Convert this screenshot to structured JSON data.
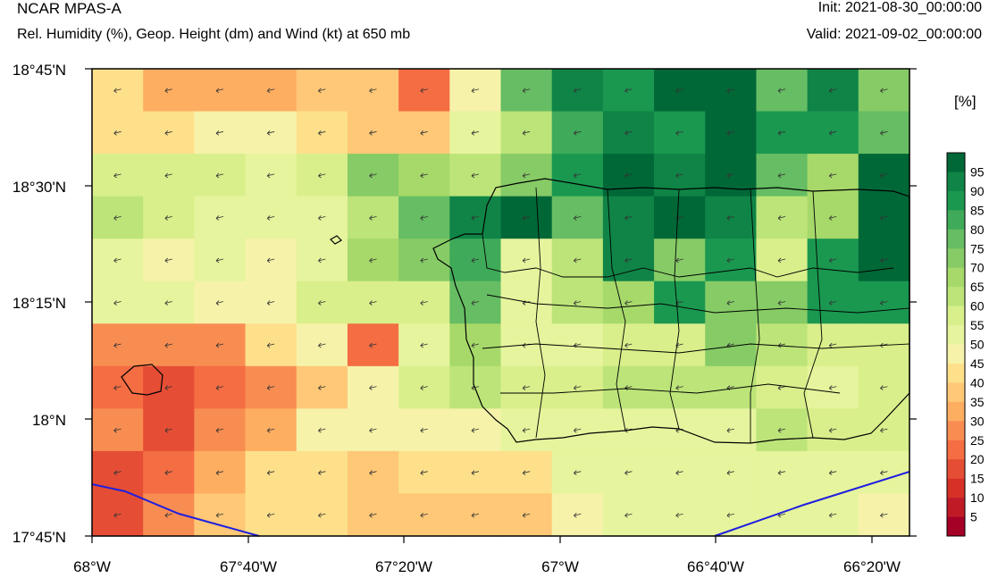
{
  "header": {
    "title": "NCAR MPAS-A",
    "subtitle": "Rel. Humidity (%), Geop. Height (dm) and Wind (kt) at 650 mb",
    "init": "Init: 2021-08-30_00:00:00",
    "valid": "Valid: 2021-09-02_00:00:00"
  },
  "colorbar": {
    "unit": "[%]",
    "labels": [
      "5",
      "10",
      "15",
      "20",
      "25",
      "30",
      "35",
      "40",
      "45",
      "50",
      "55",
      "60",
      "65",
      "70",
      "75",
      "80",
      "85",
      "90",
      "95"
    ],
    "colors": [
      "#a50026",
      "#c01a27",
      "#d73027",
      "#e54e35",
      "#f46d43",
      "#f88d52",
      "#fdae61",
      "#fec877",
      "#fee08b",
      "#f6f2a9",
      "#e6f49d",
      "#d9ef8b",
      "#bce479",
      "#a6d96a",
      "#86cb66",
      "#66bd63",
      "#3faa59",
      "#1a9850",
      "#0f8446",
      "#006837"
    ]
  },
  "map": {
    "lat_labels": [
      "18°45'N",
      "18°30'N",
      "18°15'N",
      "18°N",
      "17°45'N"
    ],
    "lon_labels": [
      "68°W",
      "67°40'W",
      "67°20'W",
      "67°W",
      "66°40'W",
      "66°20'W"
    ],
    "rh_grid": [
      [
        40,
        30,
        30,
        30,
        35,
        35,
        20,
        45,
        75,
        90,
        85,
        95,
        95,
        75,
        90,
        70
      ],
      [
        40,
        40,
        45,
        45,
        40,
        35,
        35,
        50,
        60,
        80,
        90,
        85,
        95,
        85,
        85,
        75
      ],
      [
        55,
        55,
        55,
        50,
        55,
        70,
        65,
        60,
        70,
        85,
        95,
        90,
        95,
        75,
        65,
        95
      ],
      [
        60,
        55,
        50,
        50,
        50,
        60,
        75,
        90,
        95,
        75,
        90,
        95,
        90,
        60,
        65,
        95
      ],
      [
        50,
        45,
        50,
        45,
        50,
        65,
        70,
        80,
        50,
        60,
        90,
        70,
        85,
        55,
        85,
        95
      ],
      [
        50,
        50,
        45,
        45,
        55,
        55,
        55,
        75,
        50,
        60,
        65,
        85,
        70,
        70,
        85,
        85
      ],
      [
        25,
        25,
        25,
        40,
        45,
        20,
        50,
        65,
        50,
        50,
        55,
        55,
        70,
        60,
        55,
        55
      ],
      [
        20,
        15,
        20,
        25,
        35,
        45,
        55,
        60,
        55,
        55,
        60,
        60,
        60,
        55,
        50,
        55
      ],
      [
        25,
        15,
        25,
        30,
        45,
        45,
        45,
        45,
        50,
        50,
        50,
        50,
        50,
        60,
        55,
        55
      ],
      [
        15,
        20,
        30,
        40,
        40,
        35,
        40,
        40,
        40,
        50,
        50,
        50,
        50,
        50,
        50,
        50
      ],
      [
        15,
        25,
        35,
        40,
        40,
        35,
        35,
        35,
        35,
        45,
        50,
        50,
        50,
        50,
        50,
        45
      ]
    ]
  }
}
